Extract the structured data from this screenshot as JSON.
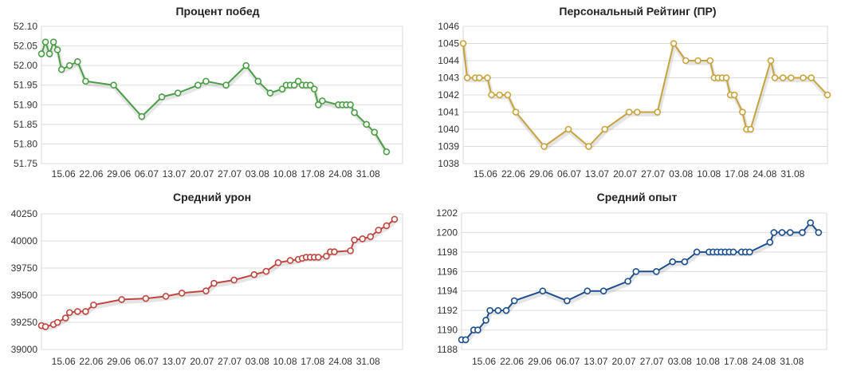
{
  "x_tick_labels": [
    "15.06",
    "22.06",
    "29.06",
    "06.07",
    "13.07",
    "20.07",
    "27.07",
    "03.08",
    "10.08",
    "17.08",
    "24.08",
    "31.08"
  ],
  "chart_data": [
    {
      "type": "line",
      "title": "Процент побед",
      "color": "#4a9e45",
      "ylim": [
        51.75,
        52.1
      ],
      "yticks": [
        "52.10",
        "52.05",
        "52.00",
        "51.95",
        "51.90",
        "51.85",
        "51.80",
        "51.75"
      ],
      "grid": true,
      "points": [
        [
          0,
          52.03
        ],
        [
          1,
          52.06
        ],
        [
          2,
          52.03
        ],
        [
          3,
          52.06
        ],
        [
          4,
          52.04
        ],
        [
          5,
          51.99
        ],
        [
          7,
          52.0
        ],
        [
          9,
          52.01
        ],
        [
          11,
          51.96
        ],
        [
          18,
          51.95
        ],
        [
          25,
          51.87
        ],
        [
          30,
          51.92
        ],
        [
          34,
          51.93
        ],
        [
          39,
          51.95
        ],
        [
          41,
          51.96
        ],
        [
          46,
          51.95
        ],
        [
          51,
          52.0
        ],
        [
          54,
          51.96
        ],
        [
          57,
          51.93
        ],
        [
          60,
          51.94
        ],
        [
          61,
          51.95
        ],
        [
          62,
          51.95
        ],
        [
          63,
          51.95
        ],
        [
          64,
          51.96
        ],
        [
          65,
          51.95
        ],
        [
          66,
          51.95
        ],
        [
          67,
          51.95
        ],
        [
          68,
          51.94
        ],
        [
          69,
          51.9
        ],
        [
          70,
          51.91
        ],
        [
          74,
          51.9
        ],
        [
          75,
          51.9
        ],
        [
          76,
          51.9
        ],
        [
          77,
          51.9
        ],
        [
          78,
          51.88
        ],
        [
          81,
          51.85
        ],
        [
          83,
          51.83
        ],
        [
          86,
          51.78
        ]
      ]
    },
    {
      "type": "line",
      "title": "Персональный Рейтинг (ПР)",
      "color": "#c8a23c",
      "ylim": [
        1038,
        1046
      ],
      "yticks": [
        "1046",
        "1045",
        "1044",
        "1043",
        "1042",
        "1041",
        "1040",
        "1039",
        "1038"
      ],
      "grid": true,
      "points": [
        [
          0,
          1045
        ],
        [
          1,
          1043
        ],
        [
          3,
          1043
        ],
        [
          4,
          1043
        ],
        [
          6,
          1043
        ],
        [
          7,
          1042
        ],
        [
          9,
          1042
        ],
        [
          11,
          1042
        ],
        [
          13,
          1041
        ],
        [
          20,
          1039
        ],
        [
          26,
          1040
        ],
        [
          31,
          1039
        ],
        [
          35,
          1040
        ],
        [
          41,
          1041
        ],
        [
          43,
          1041
        ],
        [
          48,
          1041
        ],
        [
          52,
          1045
        ],
        [
          55,
          1044
        ],
        [
          58,
          1044
        ],
        [
          61,
          1044
        ],
        [
          62,
          1043
        ],
        [
          63,
          1043
        ],
        [
          64,
          1043
        ],
        [
          65,
          1043
        ],
        [
          66,
          1042
        ],
        [
          67,
          1042
        ],
        [
          69,
          1041
        ],
        [
          70,
          1040
        ],
        [
          71,
          1040
        ],
        [
          76,
          1044
        ],
        [
          77,
          1043
        ],
        [
          79,
          1043
        ],
        [
          81,
          1043
        ],
        [
          84,
          1043
        ],
        [
          86,
          1043
        ],
        [
          90,
          1042
        ]
      ]
    },
    {
      "type": "line",
      "title": "Средний урон",
      "color": "#c0453f",
      "ylim": [
        39000,
        40250
      ],
      "yticks": [
        "40250",
        "40000",
        "39750",
        "39500",
        "39250",
        "39000"
      ],
      "grid": true,
      "points": [
        [
          0,
          39220
        ],
        [
          1,
          39210
        ],
        [
          3,
          39230
        ],
        [
          4,
          39250
        ],
        [
          6,
          39290
        ],
        [
          7,
          39340
        ],
        [
          9,
          39350
        ],
        [
          11,
          39350
        ],
        [
          13,
          39410
        ],
        [
          20,
          39460
        ],
        [
          26,
          39470
        ],
        [
          31,
          39490
        ],
        [
          35,
          39520
        ],
        [
          41,
          39540
        ],
        [
          43,
          39610
        ],
        [
          48,
          39640
        ],
        [
          53,
          39690
        ],
        [
          56,
          39720
        ],
        [
          59,
          39800
        ],
        [
          62,
          39820
        ],
        [
          64,
          39830
        ],
        [
          65,
          39840
        ],
        [
          66,
          39850
        ],
        [
          67,
          39850
        ],
        [
          68,
          39850
        ],
        [
          69,
          39850
        ],
        [
          71,
          39860
        ],
        [
          72,
          39900
        ],
        [
          73,
          39900
        ],
        [
          77,
          39910
        ],
        [
          78,
          40010
        ],
        [
          80,
          40020
        ],
        [
          82,
          40040
        ],
        [
          84,
          40100
        ],
        [
          86,
          40140
        ],
        [
          88,
          40200
        ]
      ]
    },
    {
      "type": "line",
      "title": "Средний опыт",
      "color": "#1d4f8e",
      "ylim": [
        1188,
        1202
      ],
      "yticks": [
        "1202",
        "1200",
        "1198",
        "1196",
        "1194",
        "1192",
        "1190",
        "1188"
      ],
      "grid": true,
      "points": [
        [
          0,
          1189
        ],
        [
          1,
          1189
        ],
        [
          3,
          1190
        ],
        [
          4,
          1190
        ],
        [
          6,
          1191
        ],
        [
          7,
          1192
        ],
        [
          9,
          1192
        ],
        [
          11,
          1192
        ],
        [
          13,
          1193
        ],
        [
          20,
          1194
        ],
        [
          26,
          1193
        ],
        [
          31,
          1194
        ],
        [
          35,
          1194
        ],
        [
          41,
          1195
        ],
        [
          43,
          1196
        ],
        [
          48,
          1196
        ],
        [
          52,
          1197
        ],
        [
          55,
          1197
        ],
        [
          58,
          1198
        ],
        [
          61,
          1198
        ],
        [
          62,
          1198
        ],
        [
          63,
          1198
        ],
        [
          64,
          1198
        ],
        [
          65,
          1198
        ],
        [
          66,
          1198
        ],
        [
          67,
          1198
        ],
        [
          69,
          1198
        ],
        [
          70,
          1198
        ],
        [
          71,
          1198
        ],
        [
          76,
          1199
        ],
        [
          77,
          1200
        ],
        [
          79,
          1200
        ],
        [
          81,
          1200
        ],
        [
          84,
          1200
        ],
        [
          86,
          1201
        ],
        [
          88,
          1200
        ]
      ]
    }
  ]
}
